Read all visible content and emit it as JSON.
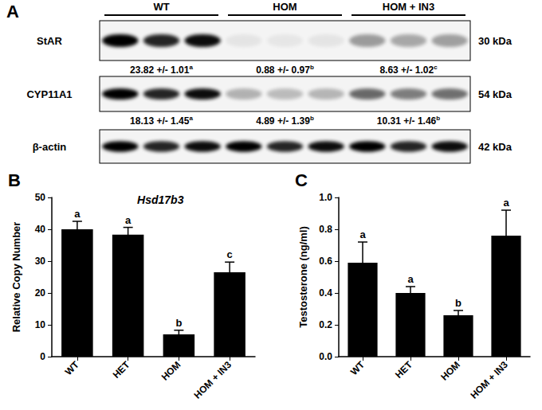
{
  "blot": {
    "panel": "A",
    "groups": [
      "WT",
      "HOM",
      "HOM + IN3"
    ],
    "rows": [
      {
        "label": "StAR",
        "size": "30 kDa",
        "quant": [
          {
            "text": "23.82 +/- 1.01",
            "sig": "a"
          },
          {
            "text": "0.88 +/- 0.97",
            "sig": "b"
          },
          {
            "text": "8.63 +/- 1.02",
            "sig": "c"
          }
        ]
      },
      {
        "label": "CYP11A1",
        "size": "54 kDa",
        "quant": [
          {
            "text": "18.13 +/- 1.45",
            "sig": "a"
          },
          {
            "text": "4.89 +/- 1.39",
            "sig": "b"
          },
          {
            "text": "10.31 +/- 1.46",
            "sig": "b"
          }
        ]
      },
      {
        "label": "β-actin",
        "size": "42 kDa"
      }
    ]
  },
  "chart_data": [
    {
      "type": "bar",
      "title": "B",
      "annotation": "Hsd17b3",
      "y_label": "Relative Copy Number",
      "categories": [
        "WT",
        "HET",
        "HOM",
        "HOM + IN3"
      ],
      "values": [
        40,
        38.3,
        7,
        26.5
      ],
      "errors": [
        2.5,
        2.3,
        1.3,
        3.2
      ],
      "significance": [
        "a",
        "a",
        "b",
        "c"
      ],
      "color": "#000000",
      "ylim": [
        0,
        50
      ],
      "yticks": [
        0,
        10,
        20,
        30,
        40,
        50
      ],
      "grid": false
    },
    {
      "type": "bar",
      "title": "C",
      "y_label": "Testosterone (ng/ml)",
      "categories": [
        "WT",
        "HET",
        "HOM",
        "HOM + IN3"
      ],
      "values": [
        0.59,
        0.4,
        0.26,
        0.76
      ],
      "errors": [
        0.13,
        0.04,
        0.03,
        0.16
      ],
      "significance": [
        "a",
        "a",
        "b",
        "a"
      ],
      "color": "#000000",
      "ylim": [
        0,
        1
      ],
      "yticks": [
        {
          "value": 0,
          "label": "0.0"
        },
        0.2,
        0.4,
        0.6,
        0.8,
        {
          "value": 1,
          "label": "1.0"
        }
      ],
      "grid": false
    }
  ]
}
